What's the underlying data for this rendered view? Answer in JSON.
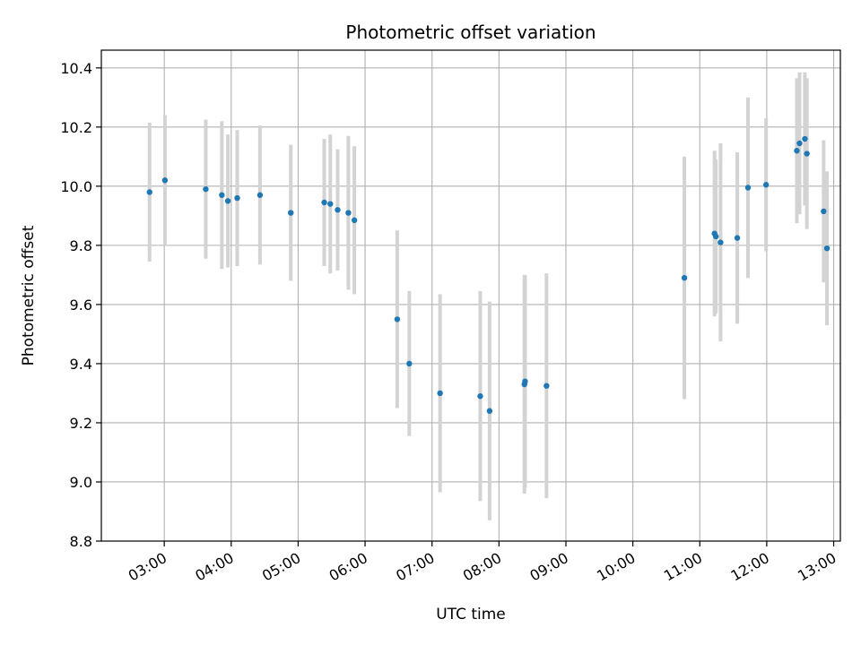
{
  "chart_data": {
    "type": "scatter",
    "title": "Photometric offset variation",
    "xlabel": "UTC time",
    "ylabel": "Photometric offset",
    "grid": true,
    "legend": "none",
    "x_unit": "hours UTC",
    "xlim": [
      2.06,
      13.1
    ],
    "ylim": [
      8.8,
      10.46
    ],
    "x_ticks": [
      {
        "value": 3,
        "label": "03:00"
      },
      {
        "value": 4,
        "label": "04:00"
      },
      {
        "value": 5,
        "label": "05:00"
      },
      {
        "value": 6,
        "label": "06:00"
      },
      {
        "value": 7,
        "label": "07:00"
      },
      {
        "value": 8,
        "label": "08:00"
      },
      {
        "value": 9,
        "label": "09:00"
      },
      {
        "value": 10,
        "label": "10:00"
      },
      {
        "value": 11,
        "label": "11:00"
      },
      {
        "value": 12,
        "label": "12:00"
      },
      {
        "value": 13,
        "label": "13:00"
      }
    ],
    "y_ticks": [
      {
        "value": 8.8,
        "label": "8.8"
      },
      {
        "value": 9.0,
        "label": "9.0"
      },
      {
        "value": 9.2,
        "label": "9.2"
      },
      {
        "value": 9.4,
        "label": "9.4"
      },
      {
        "value": 9.6,
        "label": "9.6"
      },
      {
        "value": 9.8,
        "label": "9.8"
      },
      {
        "value": 10.0,
        "label": "10.0"
      },
      {
        "value": 10.2,
        "label": "10.2"
      },
      {
        "value": 10.4,
        "label": "10.4"
      }
    ],
    "colors": {
      "points": "#1f77b4",
      "errorbars": "#d3d3d3",
      "grid": "#b0b0b0",
      "axes": "#000000"
    },
    "series": [
      {
        "points": [
          {
            "x": 2.78,
            "y": 9.98,
            "err": 0.235
          },
          {
            "x": 3.01,
            "y": 10.02,
            "err": 0.22
          },
          {
            "x": 3.62,
            "y": 9.99,
            "err": 0.235
          },
          {
            "x": 3.86,
            "y": 9.97,
            "err": 0.25
          },
          {
            "x": 3.95,
            "y": 9.95,
            "err": 0.225
          },
          {
            "x": 4.09,
            "y": 9.96,
            "err": 0.23
          },
          {
            "x": 4.43,
            "y": 9.97,
            "err": 0.235
          },
          {
            "x": 4.89,
            "y": 9.91,
            "err": 0.23
          },
          {
            "x": 5.39,
            "y": 9.945,
            "err": 0.215
          },
          {
            "x": 5.48,
            "y": 9.94,
            "err": 0.235
          },
          {
            "x": 5.59,
            "y": 9.92,
            "err": 0.205
          },
          {
            "x": 5.75,
            "y": 9.91,
            "err": 0.26
          },
          {
            "x": 5.84,
            "y": 9.885,
            "err": 0.25
          },
          {
            "x": 6.48,
            "y": 9.55,
            "err": 0.3
          },
          {
            "x": 6.66,
            "y": 9.4,
            "err": 0.245
          },
          {
            "x": 7.12,
            "y": 9.3,
            "err": 0.335
          },
          {
            "x": 7.72,
            "y": 9.29,
            "err": 0.355
          },
          {
            "x": 7.86,
            "y": 9.24,
            "err": 0.37
          },
          {
            "x": 8.38,
            "y": 9.33,
            "err": 0.37
          },
          {
            "x": 8.39,
            "y": 9.34,
            "err": 0.36
          },
          {
            "x": 8.71,
            "y": 9.325,
            "err": 0.38
          },
          {
            "x": 10.77,
            "y": 9.69,
            "err": 0.41
          },
          {
            "x": 11.22,
            "y": 9.84,
            "err": 0.28
          },
          {
            "x": 11.24,
            "y": 9.83,
            "err": 0.26
          },
          {
            "x": 11.31,
            "y": 9.81,
            "err": 0.335
          },
          {
            "x": 11.56,
            "y": 9.825,
            "err": 0.29
          },
          {
            "x": 11.72,
            "y": 9.995,
            "err": 0.305
          },
          {
            "x": 11.99,
            "y": 10.005,
            "err": 0.225
          },
          {
            "x": 12.45,
            "y": 10.12,
            "err": 0.245
          },
          {
            "x": 12.49,
            "y": 10.145,
            "err": 0.24
          },
          {
            "x": 12.57,
            "y": 10.16,
            "err": 0.225
          },
          {
            "x": 12.6,
            "y": 10.11,
            "err": 0.255
          },
          {
            "x": 12.85,
            "y": 9.915,
            "err": 0.24
          },
          {
            "x": 12.9,
            "y": 9.79,
            "err": 0.26
          }
        ]
      }
    ]
  }
}
